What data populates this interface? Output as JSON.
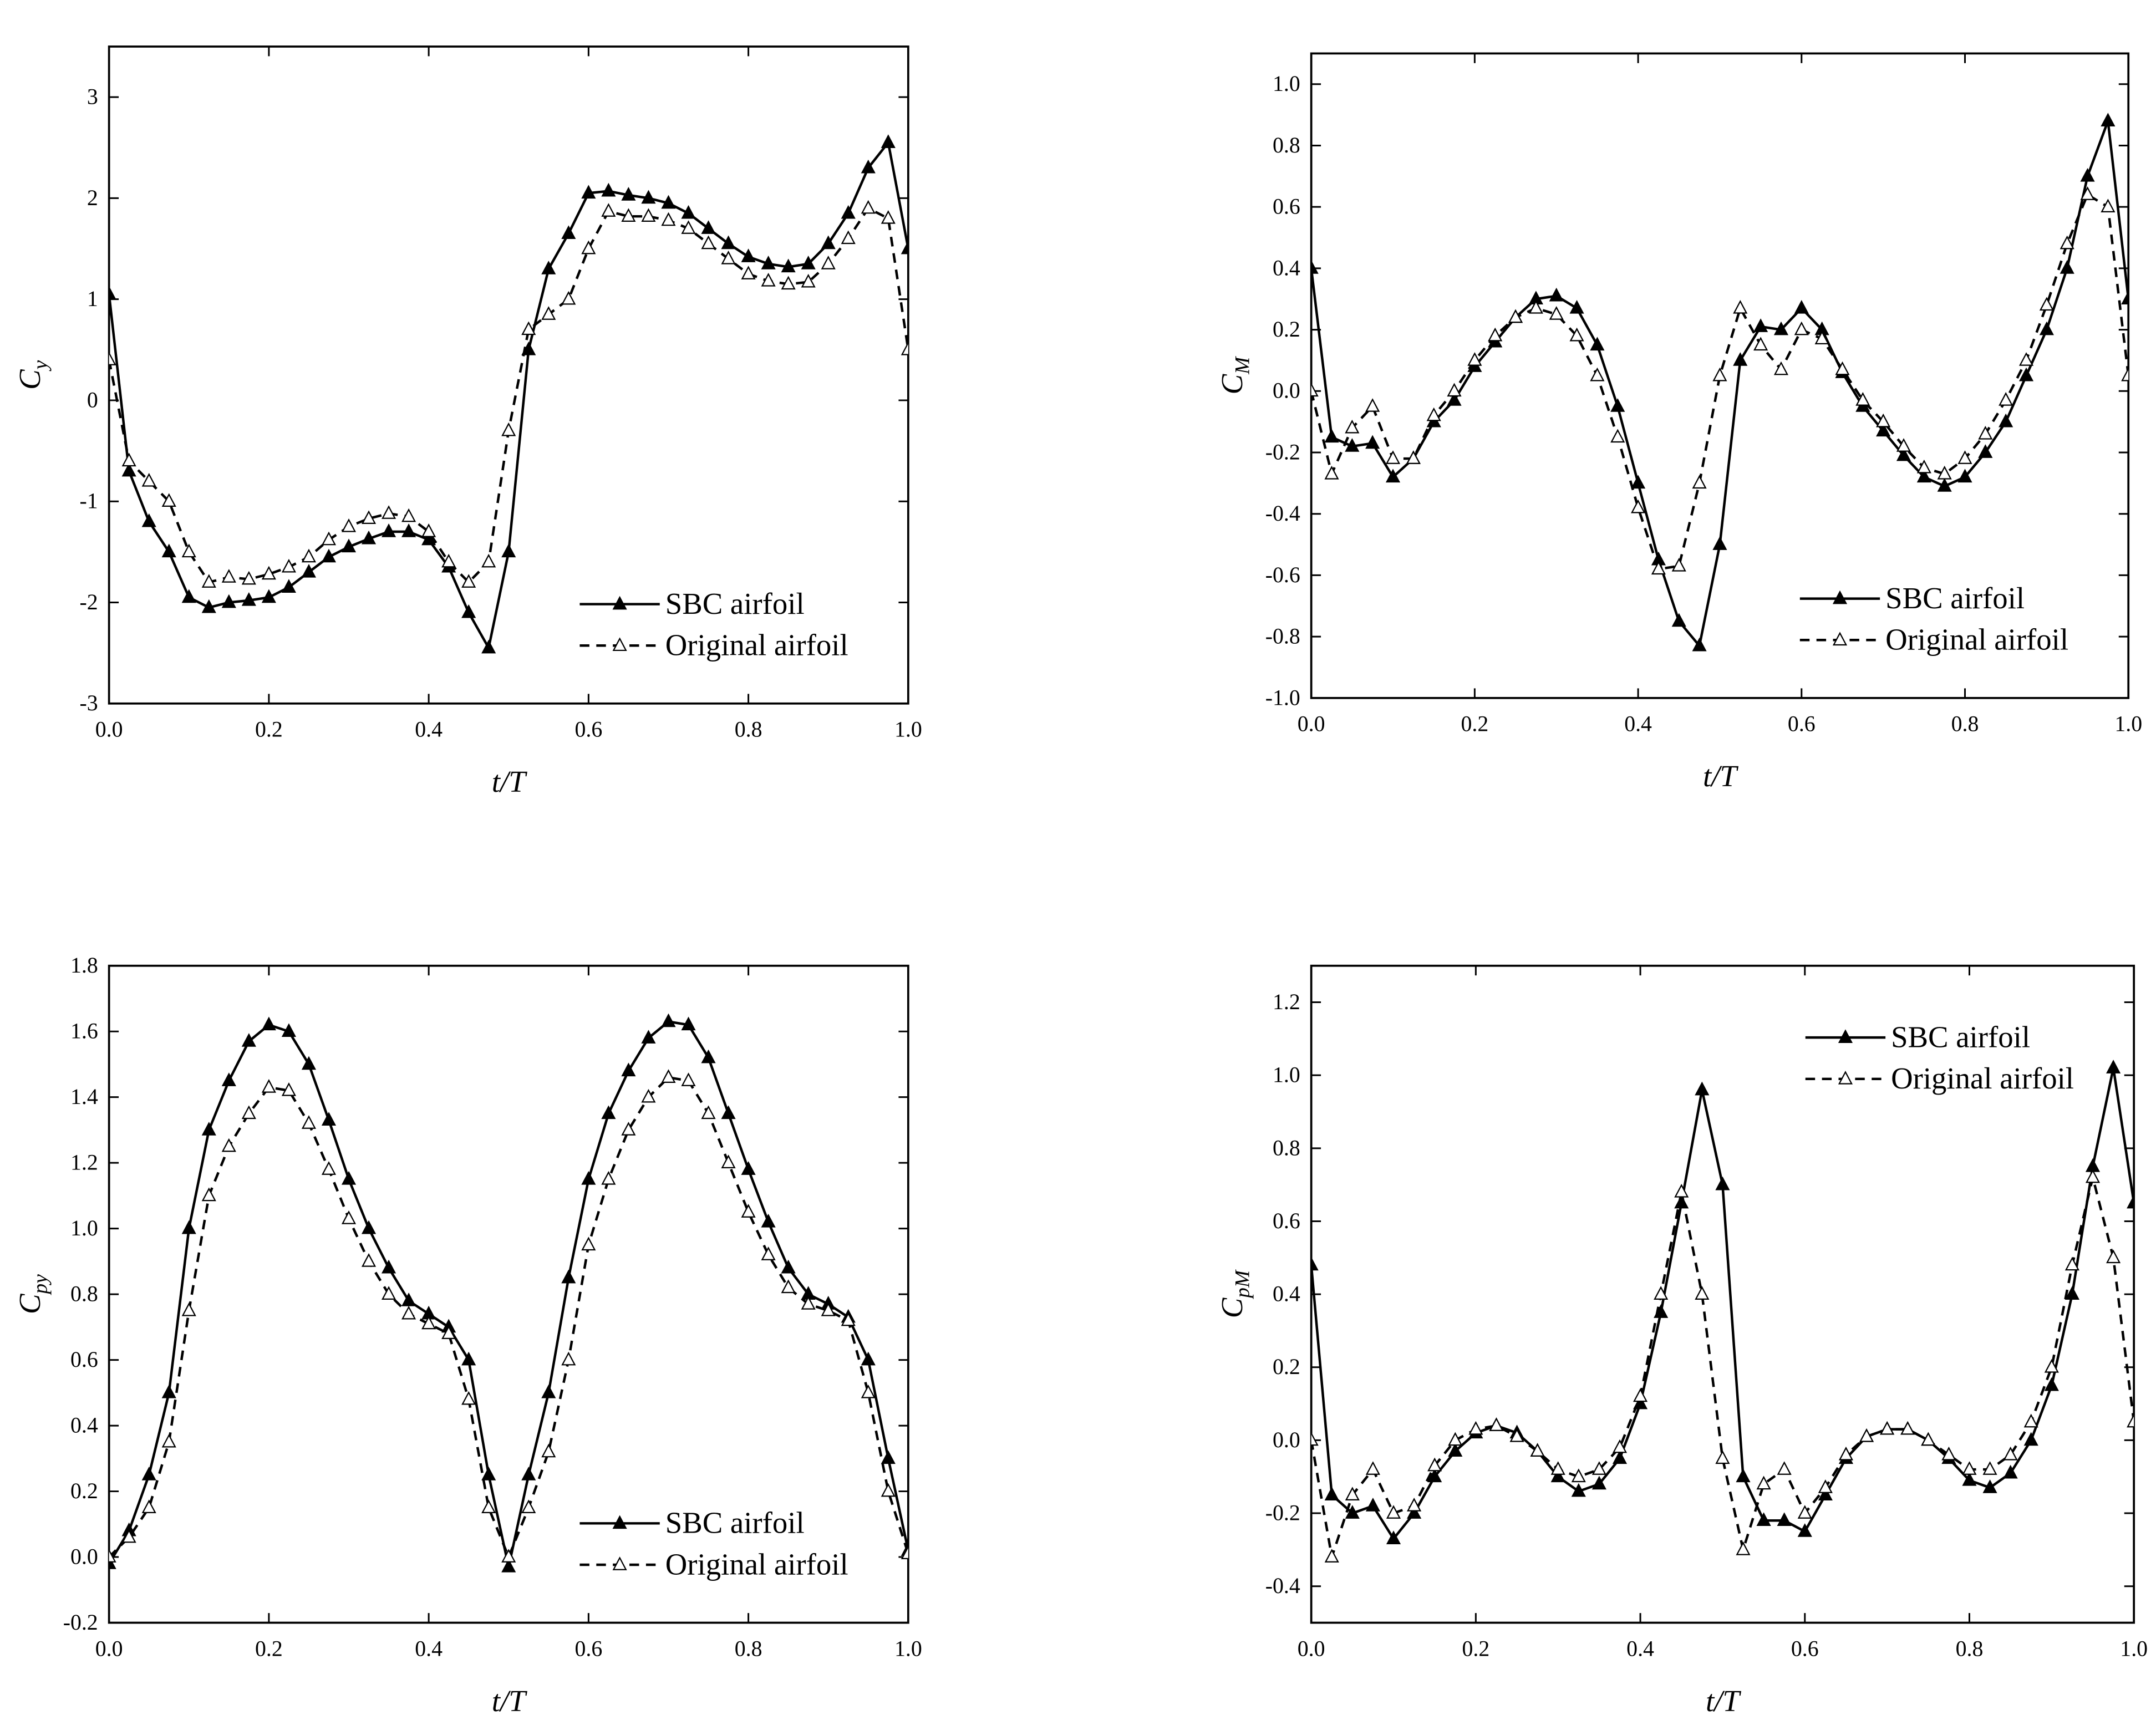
{
  "chart_data": [
    {
      "type": "line",
      "xlabel": "t/T",
      "ylabel_main": "C",
      "ylabel_sub": "y",
      "legend": "lower right",
      "x": [
        0,
        0.025,
        0.05,
        0.075,
        0.1,
        0.125,
        0.15,
        0.175,
        0.2,
        0.225,
        0.25,
        0.275,
        0.3,
        0.325,
        0.35,
        0.375,
        0.4,
        0.425,
        0.45,
        0.475,
        0.5,
        0.525,
        0.55,
        0.575,
        0.6,
        0.625,
        0.65,
        0.675,
        0.7,
        0.725,
        0.75,
        0.775,
        0.8,
        0.825,
        0.85,
        0.875,
        0.9,
        0.925,
        0.95,
        0.975,
        1.0
      ],
      "xlim": [
        0,
        1
      ],
      "xticks": [
        {
          "value": 0,
          "label": "0.0"
        },
        0.2,
        0.4,
        0.6,
        0.8,
        {
          "value": 1,
          "label": "1.0"
        }
      ],
      "ylim": [
        -3,
        3.5
      ],
      "yticks": [
        -3,
        -2,
        -1,
        0,
        1,
        2,
        3
      ],
      "series": [
        {
          "name": "SBC airfoil",
          "color": "#000000",
          "dash": false,
          "marker": "filled-triangle",
          "values": [
            1.05,
            -0.7,
            -1.2,
            -1.5,
            -1.95,
            -2.05,
            -2.0,
            -1.98,
            -1.95,
            -1.85,
            -1.7,
            -1.55,
            -1.45,
            -1.37,
            -1.3,
            -1.3,
            -1.38,
            -1.65,
            -2.1,
            -2.45,
            -1.5,
            0.5,
            1.3,
            1.65,
            2.05,
            2.07,
            2.03,
            2.0,
            1.95,
            1.85,
            1.7,
            1.55,
            1.42,
            1.35,
            1.32,
            1.35,
            1.55,
            1.85,
            2.3,
            2.55,
            1.5
          ]
        },
        {
          "name": "Original airfoil",
          "color": "#000000",
          "dash": true,
          "marker": "open-triangle",
          "values": [
            0.4,
            -0.6,
            -0.8,
            -1.0,
            -1.5,
            -1.8,
            -1.75,
            -1.77,
            -1.72,
            -1.65,
            -1.55,
            -1.38,
            -1.25,
            -1.17,
            -1.12,
            -1.15,
            -1.3,
            -1.6,
            -1.8,
            -1.6,
            -0.3,
            0.7,
            0.85,
            1.0,
            1.5,
            1.87,
            1.82,
            1.82,
            1.78,
            1.7,
            1.55,
            1.4,
            1.25,
            1.18,
            1.15,
            1.17,
            1.35,
            1.6,
            1.9,
            1.8,
            0.5
          ]
        }
      ]
    },
    {
      "type": "line",
      "xlabel": "t/T",
      "ylabel_main": "C",
      "ylabel_sub": "M",
      "legend": "lower right",
      "x": [
        0,
        0.025,
        0.05,
        0.075,
        0.1,
        0.125,
        0.15,
        0.175,
        0.2,
        0.225,
        0.25,
        0.275,
        0.3,
        0.325,
        0.35,
        0.375,
        0.4,
        0.425,
        0.45,
        0.475,
        0.5,
        0.525,
        0.55,
        0.575,
        0.6,
        0.625,
        0.65,
        0.675,
        0.7,
        0.725,
        0.75,
        0.775,
        0.8,
        0.825,
        0.85,
        0.875,
        0.9,
        0.925,
        0.95,
        0.975,
        1.0
      ],
      "xlim": [
        0,
        1
      ],
      "xticks": [
        {
          "value": 0,
          "label": "0.0"
        },
        0.2,
        0.4,
        0.6,
        0.8,
        {
          "value": 1,
          "label": "1.0"
        }
      ],
      "ylim": [
        -1,
        1.1
      ],
      "yticks": [
        {
          "value": -1,
          "label": "-1.0"
        },
        -0.8,
        -0.6,
        -0.4,
        -0.2,
        {
          "value": 0,
          "label": "0.0"
        },
        0.2,
        0.4,
        0.6,
        0.8,
        {
          "value": 1,
          "label": "1.0"
        }
      ],
      "series": [
        {
          "name": "SBC airfoil",
          "color": "#000000",
          "dash": false,
          "marker": "filled-triangle",
          "values": [
            0.4,
            -0.15,
            -0.18,
            -0.17,
            -0.28,
            -0.22,
            -0.1,
            -0.03,
            0.08,
            0.16,
            0.24,
            0.3,
            0.31,
            0.27,
            0.15,
            -0.05,
            -0.3,
            -0.55,
            -0.75,
            -0.83,
            -0.5,
            0.1,
            0.21,
            0.2,
            0.27,
            0.2,
            0.06,
            -0.05,
            -0.13,
            -0.21,
            -0.28,
            -0.31,
            -0.28,
            -0.2,
            -0.1,
            0.05,
            0.2,
            0.4,
            0.7,
            0.88,
            0.3
          ]
        },
        {
          "name": "Original airfoil",
          "color": "#000000",
          "dash": true,
          "marker": "open-triangle",
          "values": [
            0,
            -0.27,
            -0.12,
            -0.05,
            -0.22,
            -0.22,
            -0.08,
            0,
            0.1,
            0.18,
            0.24,
            0.27,
            0.25,
            0.18,
            0.05,
            -0.15,
            -0.38,
            -0.58,
            -0.57,
            -0.3,
            0.05,
            0.27,
            0.15,
            0.07,
            0.2,
            0.17,
            0.07,
            -0.03,
            -0.1,
            -0.18,
            -0.25,
            -0.27,
            -0.22,
            -0.14,
            -0.03,
            0.1,
            0.28,
            0.48,
            0.64,
            0.6,
            0.05
          ]
        }
      ]
    },
    {
      "type": "line",
      "xlabel": "t/T",
      "ylabel_main": "C",
      "ylabel_sub": "py",
      "legend": "lower right",
      "x": [
        0,
        0.025,
        0.05,
        0.075,
        0.1,
        0.125,
        0.15,
        0.175,
        0.2,
        0.225,
        0.25,
        0.275,
        0.3,
        0.325,
        0.35,
        0.375,
        0.4,
        0.425,
        0.45,
        0.475,
        0.5,
        0.525,
        0.55,
        0.575,
        0.6,
        0.625,
        0.65,
        0.675,
        0.7,
        0.725,
        0.75,
        0.775,
        0.8,
        0.825,
        0.85,
        0.875,
        0.9,
        0.925,
        0.95,
        0.975,
        1.0
      ],
      "xlim": [
        0,
        1
      ],
      "xticks": [
        {
          "value": 0,
          "label": "0.0"
        },
        0.2,
        0.4,
        0.6,
        0.8,
        {
          "value": 1,
          "label": "1.0"
        }
      ],
      "ylim": [
        -0.2,
        1.8
      ],
      "yticks": [
        -0.2,
        {
          "value": 0,
          "label": "0.0"
        },
        0.2,
        0.4,
        0.6,
        0.8,
        {
          "value": 1,
          "label": "1.0"
        },
        1.2,
        1.4,
        1.6,
        1.8
      ],
      "series": [
        {
          "name": "SBC airfoil",
          "color": "#000000",
          "dash": false,
          "marker": "filled-triangle",
          "values": [
            -0.02,
            0.08,
            0.25,
            0.5,
            1.0,
            1.3,
            1.45,
            1.57,
            1.62,
            1.6,
            1.5,
            1.33,
            1.15,
            1.0,
            0.88,
            0.78,
            0.74,
            0.7,
            0.6,
            0.25,
            -0.03,
            0.25,
            0.5,
            0.85,
            1.15,
            1.35,
            1.48,
            1.58,
            1.63,
            1.62,
            1.52,
            1.35,
            1.18,
            1.02,
            0.88,
            0.8,
            0.77,
            0.73,
            0.6,
            0.3,
            0.02
          ]
        },
        {
          "name": "Original airfoil",
          "color": "#000000",
          "dash": true,
          "marker": "open-triangle",
          "values": [
            0,
            0.06,
            0.15,
            0.35,
            0.75,
            1.1,
            1.25,
            1.35,
            1.43,
            1.42,
            1.32,
            1.18,
            1.03,
            0.9,
            0.8,
            0.74,
            0.71,
            0.68,
            0.48,
            0.15,
            0.0,
            0.15,
            0.32,
            0.6,
            0.95,
            1.15,
            1.3,
            1.4,
            1.46,
            1.45,
            1.35,
            1.2,
            1.05,
            0.92,
            0.82,
            0.77,
            0.75,
            0.72,
            0.5,
            0.2,
            0.01
          ]
        }
      ]
    },
    {
      "type": "line",
      "xlabel": "t/T",
      "ylabel_main": "C",
      "ylabel_sub": "pM",
      "legend": "upper right",
      "x": [
        0,
        0.025,
        0.05,
        0.075,
        0.1,
        0.125,
        0.15,
        0.175,
        0.2,
        0.225,
        0.25,
        0.275,
        0.3,
        0.325,
        0.35,
        0.375,
        0.4,
        0.425,
        0.45,
        0.475,
        0.5,
        0.525,
        0.55,
        0.575,
        0.6,
        0.625,
        0.65,
        0.675,
        0.7,
        0.725,
        0.75,
        0.775,
        0.8,
        0.825,
        0.85,
        0.875,
        0.9,
        0.925,
        0.95,
        0.975,
        1.0
      ],
      "xlim": [
        0,
        1
      ],
      "xticks": [
        {
          "value": 0,
          "label": "0.0"
        },
        0.2,
        0.4,
        0.6,
        0.8,
        {
          "value": 1,
          "label": "1.0"
        }
      ],
      "ylim": [
        -0.5,
        1.3
      ],
      "yticks": [
        -0.4,
        -0.2,
        {
          "value": 0,
          "label": "0.0"
        },
        0.2,
        0.4,
        0.6,
        0.8,
        {
          "value": 1,
          "label": "1.0"
        },
        1.2
      ],
      "series": [
        {
          "name": "SBC airfoil",
          "color": "#000000",
          "dash": false,
          "marker": "filled-triangle",
          "values": [
            0.48,
            -0.15,
            -0.2,
            -0.18,
            -0.27,
            -0.2,
            -0.1,
            -0.03,
            0.02,
            0.04,
            0.02,
            -0.03,
            -0.1,
            -0.14,
            -0.12,
            -0.05,
            0.1,
            0.35,
            0.65,
            0.96,
            0.7,
            -0.1,
            -0.22,
            -0.22,
            -0.25,
            -0.15,
            -0.05,
            0.01,
            0.03,
            0.03,
            0.0,
            -0.05,
            -0.11,
            -0.13,
            -0.09,
            0.0,
            0.15,
            0.4,
            0.75,
            1.02,
            0.65
          ]
        },
        {
          "name": "Original airfoil",
          "color": "#000000",
          "dash": true,
          "marker": "open-triangle",
          "values": [
            0,
            -0.32,
            -0.15,
            -0.08,
            -0.2,
            -0.18,
            -0.07,
            0,
            0.03,
            0.04,
            0.01,
            -0.03,
            -0.08,
            -0.1,
            -0.08,
            -0.02,
            0.12,
            0.4,
            0.68,
            0.4,
            -0.05,
            -0.3,
            -0.12,
            -0.08,
            -0.2,
            -0.13,
            -0.04,
            0.01,
            0.03,
            0.03,
            0.0,
            -0.04,
            -0.08,
            -0.08,
            -0.04,
            0.05,
            0.2,
            0.48,
            0.72,
            0.5,
            0.05
          ]
        }
      ]
    }
  ]
}
